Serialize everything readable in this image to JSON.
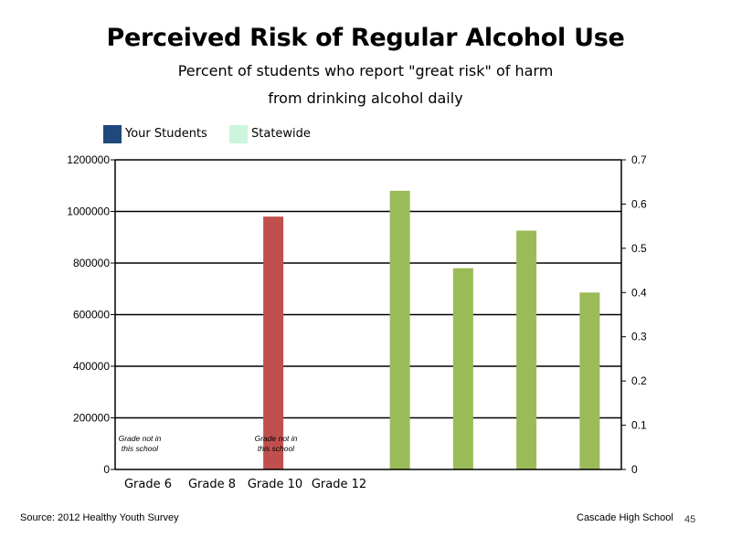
{
  "title": "Perceived Risk of Regular Alcohol Use",
  "subtitle_line1": "Percent of students who report \"great risk\" of harm",
  "subtitle_line2": "from drinking alcohol daily",
  "legend": [
    {
      "label": "Your Students",
      "color": "#1f497d"
    },
    {
      "label": "Statewide",
      "color": "#ccf5dc"
    }
  ],
  "footer": {
    "source": "Source: 2012 Healthy Youth Survey",
    "school": "Cascade High School",
    "page": "45"
  },
  "chart_data": {
    "type": "bar",
    "categories": [
      "Grade 6",
      "Grade 8",
      "Grade 10",
      "Grade 12"
    ],
    "left_axis": {
      "ylim": [
        0,
        1200000
      ],
      "ticks": [
        "0",
        "200000",
        "400000",
        "600000",
        "800000",
        "1000000",
        "1200000"
      ]
    },
    "right_axis": {
      "ylim": [
        0,
        0.7
      ],
      "ticks": [
        "0",
        "0.1",
        "0.2",
        "0.3",
        "0.4",
        "0.5",
        "0.6",
        "0.7"
      ]
    },
    "series": [
      {
        "axis": "left",
        "color": "#c0504d",
        "values": [
          null,
          null,
          980000,
          null
        ]
      },
      {
        "axis": "right",
        "color": "#9bbb59",
        "values": [
          0.63,
          0.455,
          0.54,
          0.4
        ]
      }
    ],
    "annotations": [
      {
        "category": "Grade 6",
        "lines": [
          "Grade not in",
          "this school"
        ]
      },
      {
        "category": "Grade 10",
        "lines": [
          "Grade not in",
          "this school"
        ]
      }
    ],
    "grid": true
  }
}
